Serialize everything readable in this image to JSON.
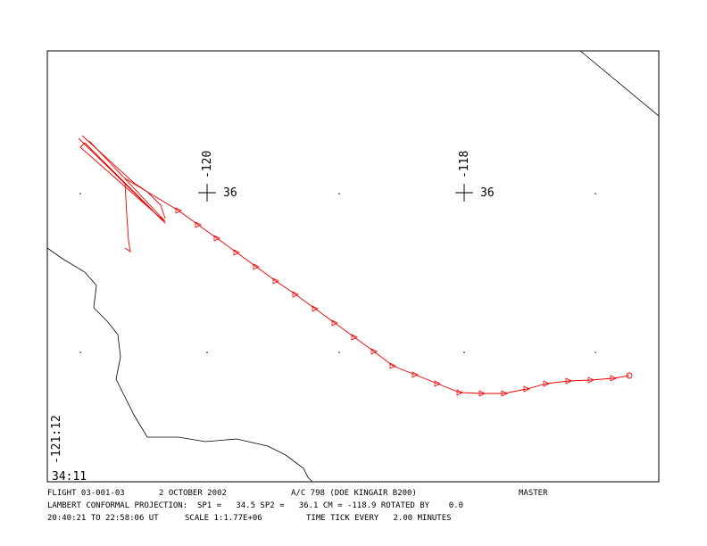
{
  "map": {
    "meridians": [
      "-120",
      "-118"
    ],
    "parallel_labels": [
      "36",
      "36"
    ],
    "corner_lon": "-121:12",
    "corner_lat": "34:11"
  },
  "footer": {
    "line1": [
      "FLIGHT 03-001-03",
      "2 OCTOBER 2002",
      "A/C 798  (DOE KINGAIR B200)",
      "MASTER"
    ],
    "line2": "LAMBERT CONFORMAL PROJECTION:  SP1 =   34.5 SP2 =   36.1 CM = -118.9 ROTATED BY    0.0",
    "line3": [
      "20:40:21 TO 22:58:06 UT",
      "SCALE 1:1.77E+06",
      "TIME TICK EVERY   2.00 MINUTES"
    ]
  }
}
